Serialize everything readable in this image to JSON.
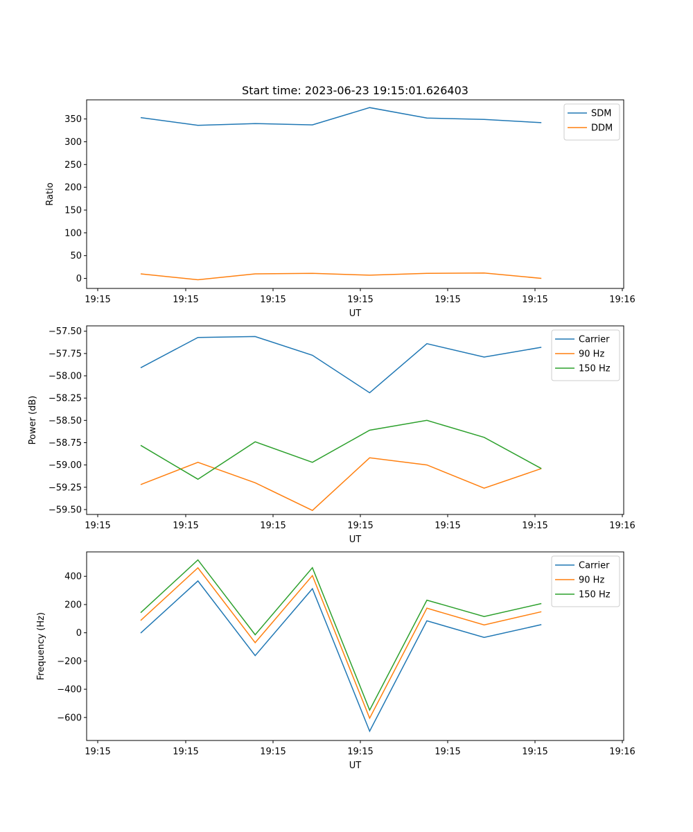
{
  "figure_title": "Start time: 2023-06-23 19:15:01.626403",
  "chart_data": [
    {
      "type": "line",
      "title": "Start time: 2023-06-23 19:15:01.626403",
      "xlabel": "UT",
      "ylabel": "Ratio",
      "x_tick_labels": [
        "19:15",
        "19:15",
        "19:15",
        "19:15",
        "19:15",
        "19:15",
        "19:16"
      ],
      "y_ticks": [
        0,
        50,
        100,
        150,
        200,
        250,
        300,
        350
      ],
      "y_tick_labels": [
        "0",
        "50",
        "100",
        "150",
        "200",
        "250",
        "300",
        "350"
      ],
      "ylim": [
        -22,
        392
      ],
      "legend_position": "top-right",
      "grid": false,
      "series": [
        {
          "name": "SDM",
          "color": "#1f77b4",
          "values": [
            353,
            336,
            340,
            337,
            375,
            352,
            349,
            342
          ]
        },
        {
          "name": "DDM",
          "color": "#ff7f0e",
          "values": [
            10,
            -3,
            10,
            11,
            7,
            11,
            12,
            0
          ]
        }
      ]
    },
    {
      "type": "line",
      "xlabel": "UT",
      "ylabel": "Power (dB)",
      "x_tick_labels": [
        "19:15",
        "19:15",
        "19:15",
        "19:15",
        "19:15",
        "19:15",
        "19:16"
      ],
      "y_ticks": [
        -59.5,
        -59.25,
        -59.0,
        -58.75,
        -58.5,
        -58.25,
        -58.0,
        -57.75,
        -57.5
      ],
      "y_tick_labels": [
        "−59.50",
        "−59.25",
        "−59.00",
        "−58.75",
        "−58.50",
        "−58.25",
        "−58.00",
        "−57.75",
        "−57.50"
      ],
      "ylim": [
        -59.555,
        -57.44
      ],
      "legend_position": "top-right",
      "grid": false,
      "series": [
        {
          "name": "Carrier",
          "color": "#1f77b4",
          "values": [
            -57.91,
            -57.57,
            -57.56,
            -57.77,
            -58.19,
            -57.64,
            -57.79,
            -57.68
          ]
        },
        {
          "name": "90 Hz",
          "color": "#ff7f0e",
          "values": [
            -59.22,
            -58.97,
            -59.2,
            -59.51,
            -58.92,
            -59.0,
            -59.26,
            -59.04
          ]
        },
        {
          "name": "150 Hz",
          "color": "#2ca02c",
          "values": [
            -58.78,
            -59.16,
            -58.74,
            -58.97,
            -58.61,
            -58.5,
            -58.69,
            -59.04
          ]
        }
      ]
    },
    {
      "type": "line",
      "xlabel": "UT",
      "ylabel": "Frequency (Hz)",
      "x_tick_labels": [
        "19:15",
        "19:15",
        "19:15",
        "19:15",
        "19:15",
        "19:15",
        "19:16"
      ],
      "y_ticks": [
        -600,
        -400,
        -200,
        0,
        200,
        400
      ],
      "y_tick_labels": [
        "−600",
        "−400",
        "−200",
        "0",
        "200",
        "400"
      ],
      "ylim": [
        -763,
        573
      ],
      "legend_position": "top-right",
      "grid": false,
      "series": [
        {
          "name": "Carrier",
          "color": "#1f77b4",
          "values": [
            -2,
            367,
            -162,
            312,
            -697,
            85,
            -33,
            58
          ]
        },
        {
          "name": "90 Hz",
          "color": "#ff7f0e",
          "values": [
            87,
            460,
            -70,
            405,
            -605,
            174,
            56,
            149
          ]
        },
        {
          "name": "150 Hz",
          "color": "#2ca02c",
          "values": [
            142,
            516,
            -14,
            461,
            -548,
            231,
            115,
            207
          ]
        }
      ]
    }
  ]
}
